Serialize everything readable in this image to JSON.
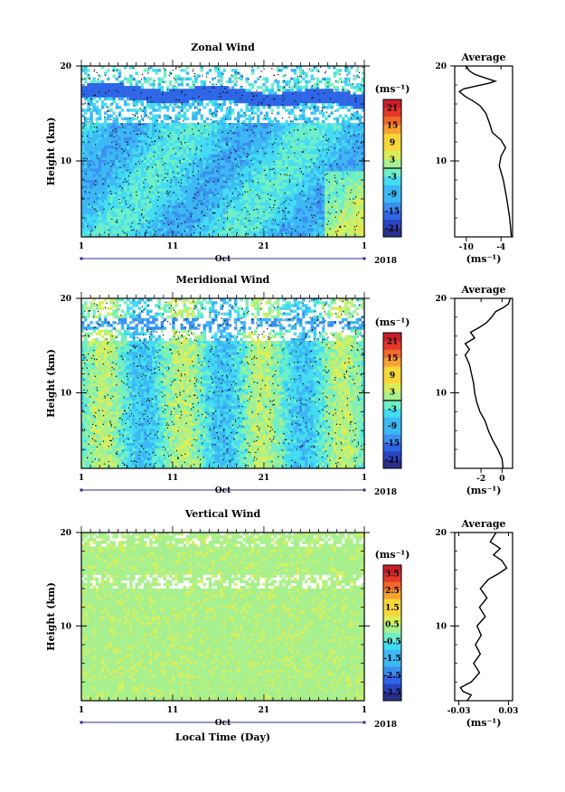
{
  "chart_data": [
    {
      "type": "heatmap",
      "title": "Zonal Wind",
      "ylabel": "Height (km)",
      "ylim": [
        2,
        20
      ],
      "y_ticks": [
        "10",
        "20"
      ],
      "x_ticks": [
        "1",
        "11",
        "21",
        "1"
      ],
      "x_month": "Oct",
      "x_year": "2018",
      "xlabel": "",
      "colorbar": {
        "unit": "(ms⁻¹)",
        "range": [
          -24,
          24
        ],
        "ticks": [
          "21",
          "15",
          "9",
          "3",
          "-3",
          "-9",
          "-15",
          "-21"
        ],
        "zero_line": true
      },
      "profile": {
        "title": "Average",
        "xlim": [
          -12,
          -2
        ],
        "x_ticks": [
          "-10",
          "-4"
        ],
        "y_ticks": [
          "10",
          "20"
        ],
        "xlabel": "(ms⁻¹)",
        "points": [
          [
            -2.2,
            2
          ],
          [
            -2.5,
            4
          ],
          [
            -3.0,
            6
          ],
          [
            -3.6,
            8
          ],
          [
            -4.3,
            9.5
          ],
          [
            -4.0,
            10.5
          ],
          [
            -3.2,
            11.4
          ],
          [
            -4.0,
            12.2
          ],
          [
            -5.5,
            13
          ],
          [
            -6.0,
            14
          ],
          [
            -6.6,
            15
          ],
          [
            -7.6,
            15.8
          ],
          [
            -8.8,
            16.3
          ],
          [
            -10.2,
            16.8
          ],
          [
            -11.2,
            17.3
          ],
          [
            -10.4,
            17.6
          ],
          [
            -8.2,
            17.9
          ],
          [
            -6.0,
            18.2
          ],
          [
            -5.0,
            18.4
          ],
          [
            -6.5,
            18.7
          ],
          [
            -8.5,
            19.1
          ],
          [
            -9.5,
            19.5
          ],
          [
            -10.0,
            20
          ]
        ]
      }
    },
    {
      "type": "heatmap",
      "title": "Meridional Wind",
      "ylabel": "Height (km)",
      "ylim": [
        2,
        20
      ],
      "y_ticks": [
        "10",
        "20"
      ],
      "x_ticks": [
        "1",
        "11",
        "21",
        "1"
      ],
      "x_month": "Oct",
      "x_year": "2018",
      "xlabel": "",
      "colorbar": {
        "unit": "(ms⁻¹)",
        "range": [
          -24,
          24
        ],
        "ticks": [
          "21",
          "15",
          "9",
          "3",
          "-3",
          "-9",
          "-15",
          "-21"
        ],
        "zero_line": true
      },
      "profile": {
        "title": "Average",
        "xlim": [
          -4.5,
          1
        ],
        "x_ticks": [
          "-2",
          "0"
        ],
        "y_ticks": [
          "10",
          "20"
        ],
        "xlabel": "(ms⁻¹)",
        "points": [
          [
            0.1,
            2
          ],
          [
            0.0,
            3
          ],
          [
            -0.4,
            4
          ],
          [
            -0.9,
            5
          ],
          [
            -1.3,
            6
          ],
          [
            -1.6,
            7
          ],
          [
            -2.1,
            8
          ],
          [
            -2.4,
            9
          ],
          [
            -2.6,
            10
          ],
          [
            -2.7,
            11
          ],
          [
            -2.9,
            12
          ],
          [
            -3.1,
            13
          ],
          [
            -3.5,
            14
          ],
          [
            -3.1,
            14.6
          ],
          [
            -3.5,
            15.2
          ],
          [
            -2.6,
            15.8
          ],
          [
            -3.0,
            16.4
          ],
          [
            -2.2,
            16.9
          ],
          [
            -1.5,
            17.4
          ],
          [
            -1.0,
            18.0
          ],
          [
            -0.6,
            18.6
          ],
          [
            0.1,
            19.0
          ],
          [
            0.6,
            19.4
          ],
          [
            0.8,
            20
          ]
        ]
      }
    },
    {
      "type": "heatmap",
      "title": "Vertical Wind",
      "ylabel": "Height (km)",
      "ylim": [
        2,
        20
      ],
      "y_ticks": [
        "10",
        "20"
      ],
      "x_ticks": [
        "1",
        "11",
        "21",
        "1"
      ],
      "x_month": "Oct",
      "x_year": "2018",
      "xlabel": "Local Time (Day)",
      "colorbar": {
        "unit": "(ms⁻¹)",
        "range": [
          -4,
          4
        ],
        "ticks": [
          "3.5",
          "2.5",
          "1.5",
          "0.5",
          "-0.5",
          "-1.5",
          "-2.5",
          "-3.5"
        ],
        "zero_line": false
      },
      "profile": {
        "title": "Average",
        "xlim": [
          -0.035,
          0.035
        ],
        "x_ticks": [
          "-0.03",
          "0.03"
        ],
        "y_ticks": [
          "10",
          "20"
        ],
        "xlabel": "(ms⁻¹)",
        "points": [
          [
            -0.02,
            2
          ],
          [
            -0.015,
            2.6
          ],
          [
            -0.025,
            3.0
          ],
          [
            -0.028,
            3.4
          ],
          [
            -0.015,
            4.0
          ],
          [
            -0.005,
            5
          ],
          [
            -0.012,
            6
          ],
          [
            -0.004,
            7
          ],
          [
            -0.01,
            8
          ],
          [
            -0.003,
            9
          ],
          [
            -0.008,
            10
          ],
          [
            0.002,
            11
          ],
          [
            -0.005,
            12
          ],
          [
            0.004,
            13
          ],
          [
            -0.004,
            14
          ],
          [
            0.006,
            15
          ],
          [
            0.018,
            15.6
          ],
          [
            0.028,
            16.2
          ],
          [
            0.022,
            17.0
          ],
          [
            0.012,
            17.6
          ],
          [
            0.02,
            18.3
          ],
          [
            0.008,
            19.0
          ],
          [
            0.015,
            20
          ]
        ]
      }
    }
  ]
}
